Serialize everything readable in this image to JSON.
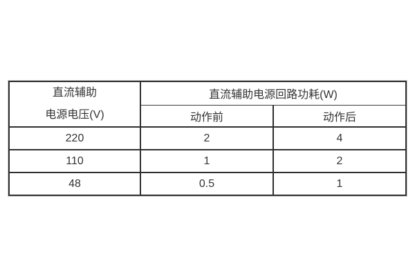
{
  "table": {
    "col1_header_line1": "直流辅助",
    "col1_header_line2": "电源电压(V)",
    "group_header": "直流辅助电源回路功耗(W)",
    "sub_headers": [
      "动作前",
      "动作后"
    ],
    "rows": [
      [
        "220",
        "2",
        "4"
      ],
      [
        "110",
        "1",
        "2"
      ],
      [
        "48",
        "0.5",
        "1"
      ]
    ]
  },
  "colors": {
    "border": "#2e2e2e",
    "outer_halo": "#cccccc",
    "text": "#333333",
    "background": "#ffffff"
  }
}
